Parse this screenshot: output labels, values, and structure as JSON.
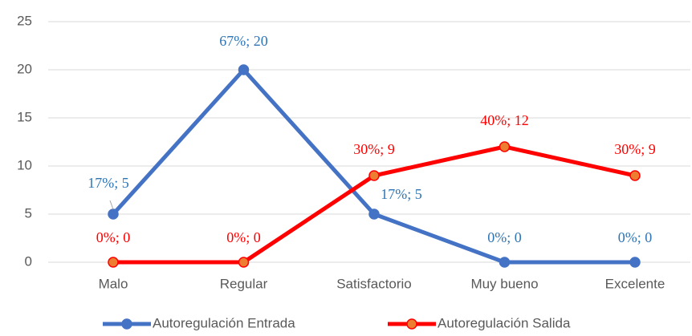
{
  "chart_data": {
    "type": "line",
    "categories": [
      "Malo",
      "Regular",
      "Satisfactorio",
      "Muy bueno",
      "Excelente"
    ],
    "series": [
      {
        "name": "Autoregulación Entrada",
        "color": "#4472c4",
        "marker_color": "#4472c4",
        "label_color": "#2e75b6",
        "values": [
          5,
          20,
          5,
          0,
          0
        ],
        "value_labels": [
          "17%; 5",
          "67%; 20",
          "17%; 5",
          "0%; 0",
          "0%; 0"
        ]
      },
      {
        "name": "Autoregulación Salida",
        "color": "#ff0000",
        "marker_color": "#ed7d31",
        "label_color": "#ff0000",
        "values": [
          0,
          0,
          9,
          12,
          9
        ],
        "value_labels": [
          "0%; 0",
          "0%; 0",
          "30%; 9",
          "40%; 12",
          "30%; 9"
        ]
      }
    ],
    "ylim": [
      0,
      25
    ],
    "yticks": [
      0,
      5,
      10,
      15,
      20,
      25
    ],
    "grid": true,
    "legend": "bottom"
  }
}
